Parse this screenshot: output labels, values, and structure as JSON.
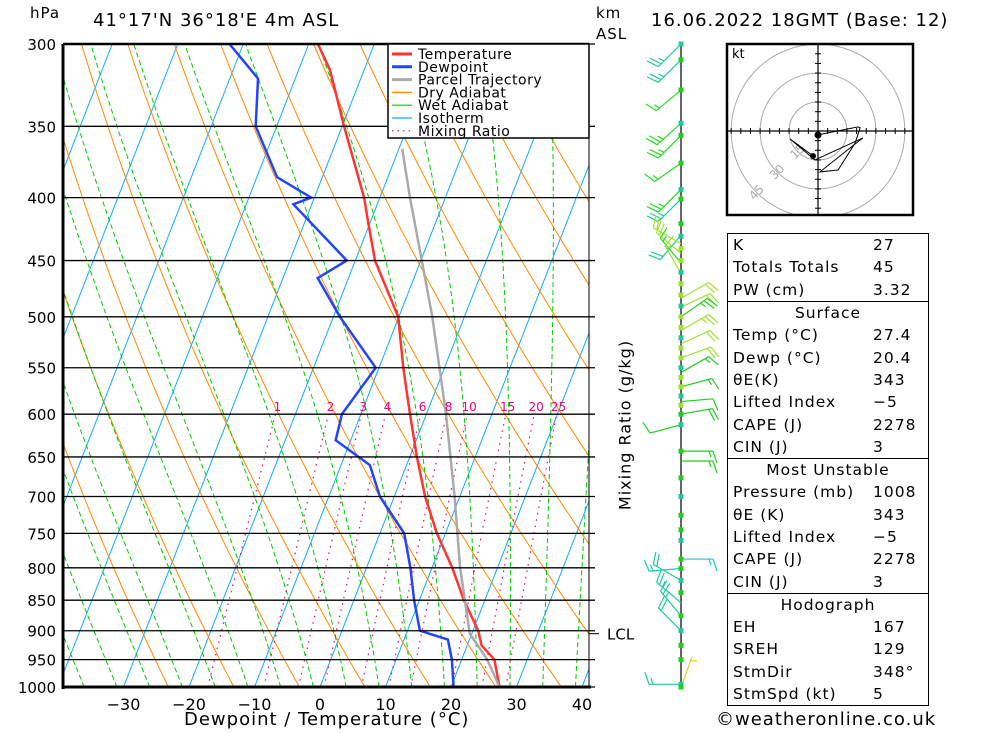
{
  "header": {
    "hpa_label": "hPa",
    "location": "41°17'N 36°18'E 4m ASL",
    "km_label": "km",
    "asl_label": "ASL",
    "datetime": "16.06.2022 18GMT (Base: 12)"
  },
  "footer": {
    "copyright": "©weatheronline.co.uk"
  },
  "colors": {
    "temperature": "#ff3333",
    "dewpoint": "#2244ff",
    "parcel": "#aaaaaa",
    "dry_adiabat": "#ff8800",
    "wet_adiabat": "#00cc00",
    "isotherm": "#11aaff",
    "mixing_ratio": "#ee0077"
  },
  "chart_data": {
    "type": "line",
    "subtype": "skew-T log-P",
    "xlabel": "Dewpoint / Temperature (°C)",
    "ylabel": "hPa",
    "right_label": "Mixing Ratio (g/kg)",
    "xlim": [
      -40,
      40
    ],
    "ylim": [
      1000,
      300
    ],
    "x_ticks": [
      -30,
      -20,
      -10,
      0,
      10,
      20,
      30,
      40
    ],
    "pressure_ticks": [
      300,
      350,
      400,
      450,
      500,
      550,
      600,
      650,
      700,
      750,
      800,
      850,
      900,
      950,
      1000
    ],
    "mixing_ratio_labels": [
      1,
      2,
      3,
      4,
      6,
      8,
      10,
      15,
      20,
      25
    ],
    "lcl": {
      "label": "LCL",
      "pressure": 905
    },
    "legend": {
      "placement": "top-right",
      "items": [
        {
          "label": "Temperature",
          "key": "temperature",
          "style": "thick"
        },
        {
          "label": "Dewpoint",
          "key": "dewpoint",
          "style": "thick"
        },
        {
          "label": "Parcel Trajectory",
          "key": "parcel",
          "style": "thick"
        },
        {
          "label": "Dry Adiabat",
          "key": "dry_adiabat",
          "style": "thin"
        },
        {
          "label": "Wet Adiabat",
          "key": "wet_adiabat",
          "style": "thin"
        },
        {
          "label": "Isotherm",
          "key": "isotherm",
          "style": "thin"
        },
        {
          "label": "Mixing Ratio",
          "key": "mixing_ratio",
          "style": "dotted"
        }
      ]
    },
    "series": [
      {
        "name": "Temperature",
        "key": "temperature",
        "p": [
          300,
          315,
          350,
          400,
          420,
          450,
          500,
          550,
          600,
          650,
          700,
          750,
          800,
          850,
          900,
          925,
          950,
          1000
        ],
        "t": [
          -38.6,
          -35.2,
          -29.7,
          -22.4,
          -20.2,
          -17.0,
          -10.1,
          -6.3,
          -2.5,
          1.1,
          4.7,
          8.7,
          13.1,
          16.8,
          20.8,
          22.2,
          25.0,
          27.4
        ]
      },
      {
        "name": "Dewpoint",
        "key": "dewpoint",
        "p": [
          300,
          320,
          350,
          385,
          400,
          405,
          450,
          465,
          500,
          550,
          600,
          630,
          660,
          700,
          750,
          800,
          850,
          900,
          915,
          950,
          1000
        ],
        "t": [
          -52.1,
          -45.7,
          -43.2,
          -36.9,
          -30.5,
          -32.8,
          -21.3,
          -24.7,
          -19.0,
          -10.5,
          -12.9,
          -12.3,
          -5.6,
          -2.2,
          3.7,
          6.7,
          9.2,
          11.9,
          16.7,
          18.5,
          20.4
        ]
      },
      {
        "name": "Parcel Trajectory",
        "key": "parcel",
        "p": [
          365,
          400,
          500,
          600,
          700,
          800,
          905,
          950,
          1000
        ],
        "t": [
          -19.5,
          -15.4,
          -4.9,
          3.0,
          9.2,
          14.3,
          19.7,
          23.9,
          27.4
        ]
      }
    ],
    "winds": [
      {
        "p": 300,
        "dir": 225,
        "spd": 25,
        "color": "#20c8a0"
      },
      {
        "p": 309,
        "dir": 225,
        "spd": 25,
        "color": "#20c8a0"
      },
      {
        "p": 327,
        "dir": 230,
        "spd": 15,
        "color": "#22dd22"
      },
      {
        "p": 348,
        "dir": 228,
        "spd": 25,
        "color": "#22dd22"
      },
      {
        "p": 356,
        "dir": 225,
        "spd": 25,
        "color": "#22dd22"
      },
      {
        "p": 375,
        "dir": 235,
        "spd": 15,
        "color": "#22dd22"
      },
      {
        "p": 394,
        "dir": 225,
        "spd": 25,
        "color": "#22dd22"
      },
      {
        "p": 401,
        "dir": 225,
        "spd": 25,
        "color": "#20c8a0"
      },
      {
        "p": 429,
        "dir": 220,
        "spd": 20,
        "color": "#20c8a0"
      },
      {
        "p": 436,
        "dir": 300,
        "spd": 20,
        "color": "#a0e030"
      },
      {
        "p": 444,
        "dir": 310,
        "spd": 20,
        "color": "#a0e030"
      },
      {
        "p": 452,
        "dir": 320,
        "spd": 15,
        "color": "#22dd22"
      },
      {
        "p": 461,
        "dir": 330,
        "spd": 15,
        "color": "#a0e030"
      },
      {
        "p": 483,
        "dir": 60,
        "spd": 20,
        "color": "#a0e030"
      },
      {
        "p": 491,
        "dir": 65,
        "spd": 20,
        "color": "#a0e030"
      },
      {
        "p": 500,
        "dir": 55,
        "spd": 25,
        "color": "#22cc22"
      },
      {
        "p": 513,
        "dir": 60,
        "spd": 25,
        "color": "#a0e030"
      },
      {
        "p": 526,
        "dir": 65,
        "spd": 20,
        "color": "#a0e030"
      },
      {
        "p": 540,
        "dir": 70,
        "spd": 20,
        "color": "#a0e030"
      },
      {
        "p": 555,
        "dir": 60,
        "spd": 15,
        "color": "#22cc22"
      },
      {
        "p": 570,
        "dir": 75,
        "spd": 15,
        "color": "#22cc22"
      },
      {
        "p": 586,
        "dir": 85,
        "spd": 10,
        "color": "#22cc22"
      },
      {
        "p": 600,
        "dir": 80,
        "spd": 20,
        "color": "#22cc22"
      },
      {
        "p": 612,
        "dir": 255,
        "spd": 10,
        "color": "#22cc22"
      },
      {
        "p": 643,
        "dir": 90,
        "spd": 15,
        "color": "#22cc22"
      },
      {
        "p": 655,
        "dir": 90,
        "spd": 15,
        "color": "#22cc22"
      },
      {
        "p": 787,
        "dir": 90,
        "spd": 15,
        "color": "#10c8c8"
      },
      {
        "p": 801,
        "dir": 265,
        "spd": 15,
        "color": "#10c8c8"
      },
      {
        "p": 819,
        "dir": 300,
        "spd": 20,
        "color": "#20c8a0"
      },
      {
        "p": 854,
        "dir": 310,
        "spd": 25,
        "color": "#20c8a0"
      },
      {
        "p": 875,
        "dir": 320,
        "spd": 25,
        "color": "#20c8a0"
      },
      {
        "p": 900,
        "dir": 315,
        "spd": 20,
        "color": "#20c8a0"
      },
      {
        "p": 995,
        "dir": 270,
        "spd": 15,
        "color": "#20c8a0"
      },
      {
        "p": 1000,
        "dir": 20,
        "spd": 5,
        "color": "#e0d020"
      }
    ],
    "wind_dots": [
      300,
      309,
      327,
      348,
      356,
      375,
      394,
      401,
      420,
      430,
      440,
      450,
      460,
      470,
      480,
      490,
      500,
      510,
      520,
      530,
      540,
      550,
      560,
      570,
      580,
      590,
      600,
      612,
      643,
      676,
      700,
      725,
      745,
      760,
      787,
      801,
      819,
      838,
      875,
      900,
      925,
      950,
      995,
      1000
    ]
  },
  "hodograph": {
    "unit_label": "kt",
    "rings": [
      15,
      30,
      45
    ],
    "ring_labels": [
      "15",
      "30",
      "45"
    ],
    "path_kt": [
      [
        0,
        -2
      ],
      [
        20.7,
        2.1
      ],
      [
        21.8,
        1.6
      ],
      [
        19.2,
        -6.2
      ],
      [
        10.4,
        -20.2
      ],
      [
        1,
        -21.2
      ],
      [
        16.6,
        -8.8
      ],
      [
        23.3,
        -3.6
      ],
      [
        -1.6,
        -15
      ],
      [
        -14.5,
        -4.1
      ],
      [
        -2.6,
        -12.9
      ]
    ]
  },
  "stats": {
    "sections": [
      {
        "title": null,
        "rows": [
          {
            "label": "K",
            "value": "27"
          },
          {
            "label": "Totals Totals",
            "value": "45"
          },
          {
            "label": "PW (cm)",
            "value": "3.32"
          }
        ]
      },
      {
        "title": "Surface",
        "rows": [
          {
            "label": "Temp (°C)",
            "value": "27.4"
          },
          {
            "label": "Dewp (°C)",
            "value": "20.4"
          },
          {
            "label": "θE(K)",
            "value": "343"
          },
          {
            "label": "Lifted Index",
            "value": "−5"
          },
          {
            "label": "CAPE (J)",
            "value": "2278"
          },
          {
            "label": "CIN (J)",
            "value": "3"
          }
        ]
      },
      {
        "title": "Most Unstable",
        "rows": [
          {
            "label": "Pressure (mb)",
            "value": "1008"
          },
          {
            "label": "θE (K)",
            "value": "343"
          },
          {
            "label": "Lifted Index",
            "value": "−5"
          },
          {
            "label": "CAPE (J)",
            "value": "2278"
          },
          {
            "label": "CIN (J)",
            "value": "3"
          }
        ]
      },
      {
        "title": "Hodograph",
        "rows": [
          {
            "label": "EH",
            "value": "167"
          },
          {
            "label": "SREH",
            "value": "129"
          },
          {
            "label": "StmDir",
            "value": "348°"
          },
          {
            "label": "StmSpd (kt)",
            "value": "5"
          }
        ]
      }
    ]
  }
}
